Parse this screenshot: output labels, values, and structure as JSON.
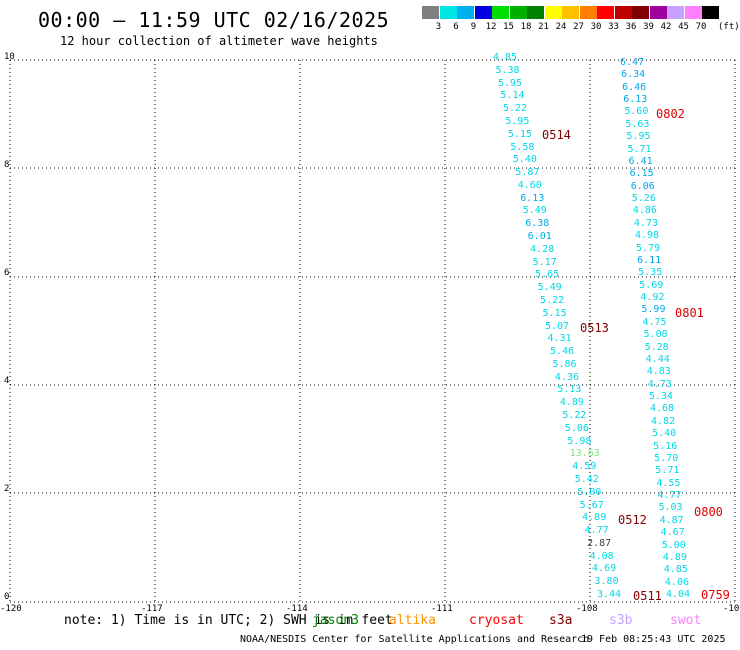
{
  "header": {
    "title": "00:00 – 11:59 UTC 02/16/2025",
    "subtitle": "12 hour collection of altimeter wave heights"
  },
  "legend": {
    "unit": "(ft)",
    "bins": [
      {
        "label": "3",
        "color": "#808080"
      },
      {
        "label": "6",
        "color": "#00e5e5"
      },
      {
        "label": "9",
        "color": "#00b0f0"
      },
      {
        "label": "12",
        "color": "#0000e0"
      },
      {
        "label": "15",
        "color": "#00e000"
      },
      {
        "label": "18",
        "color": "#00b000"
      },
      {
        "label": "21",
        "color": "#008000"
      },
      {
        "label": "24",
        "color": "#ffff00"
      },
      {
        "label": "27",
        "color": "#ffc000"
      },
      {
        "label": "30",
        "color": "#ff8000"
      },
      {
        "label": "33",
        "color": "#ff0000"
      },
      {
        "label": "36",
        "color": "#c00000"
      },
      {
        "label": "39",
        "color": "#800000"
      },
      {
        "label": "42",
        "color": "#a000a0"
      },
      {
        "label": "45",
        "color": "#c8a0ff"
      },
      {
        "label": "70",
        "color": "#ff80ff"
      },
      {
        "label": "",
        "color": "#000000"
      }
    ]
  },
  "axes": {
    "x_ticks": [
      "-120",
      "-117",
      "-114",
      "-111",
      "-108",
      "-10"
    ],
    "y_ticks": [
      "0",
      "2",
      "4",
      "6",
      "8",
      "10"
    ]
  },
  "track_left": {
    "values": [
      "4.85",
      "5.38",
      "5.95",
      "5.14",
      "5.22",
      "5.95",
      "5.15",
      "5.58",
      "5.40",
      "5.87",
      "4.60",
      "6.13",
      "5.49",
      "6.38",
      "6.01",
      "4.28",
      "5.17",
      "5.65",
      "5.49",
      "5.22",
      "5.15",
      "5.07",
      "4.31",
      "5.46",
      "5.86",
      "4.36",
      "5.13",
      "4.89",
      "5.22",
      "5.06",
      "5.98",
      "13.63",
      "4.59",
      "5.42",
      "5.00",
      "5.67",
      "4.89",
      "4.77",
      "2.87",
      "4.08",
      "4.69",
      "3.80",
      "3.44"
    ],
    "colors": [
      "c",
      "c",
      "c",
      "c",
      "c",
      "c",
      "c",
      "c",
      "c",
      "c",
      "c",
      "b",
      "c",
      "b",
      "b",
      "c",
      "c",
      "c",
      "c",
      "c",
      "c",
      "c",
      "c",
      "c",
      "c",
      "c",
      "c",
      "c",
      "c",
      "c",
      "c",
      "g",
      "c",
      "c",
      "c",
      "c",
      "c",
      "c",
      "k",
      "c",
      "c",
      "c",
      "c"
    ]
  },
  "track_right": {
    "values": [
      "6.47",
      "6.34",
      "6.46",
      "6.13",
      "5.60",
      "5.63",
      "5.95",
      "5.71",
      "6.41",
      "6.15",
      "6.06",
      "5.26",
      "4.86",
      "4.73",
      "4.98",
      "5.79",
      "6.11",
      "5.35",
      "5.69",
      "4.92",
      "5.99",
      "4.75",
      "5.08",
      "5.28",
      "4.44",
      "4.83",
      "4.73",
      "5.34",
      "4.68",
      "4.82",
      "5.40",
      "5.16",
      "5.70",
      "5.71",
      "4.55",
      "4.77",
      "5.03",
      "4.87",
      "4.67",
      "5.00",
      "4.89",
      "4.85",
      "4.06",
      "4.04"
    ],
    "colors": [
      "b",
      "b",
      "b",
      "b",
      "c",
      "c",
      "c",
      "c",
      "b",
      "b",
      "b",
      "c",
      "c",
      "c",
      "c",
      "c",
      "b",
      "c",
      "c",
      "c",
      "b",
      "c",
      "c",
      "c",
      "c",
      "c",
      "c",
      "c",
      "c",
      "c",
      "c",
      "c",
      "c",
      "c",
      "c",
      "c",
      "c",
      "c",
      "c",
      "c",
      "c",
      "c",
      "c",
      "c"
    ]
  },
  "orbits": [
    {
      "label": "0514",
      "color": "#800000"
    },
    {
      "label": "0513",
      "color": "#800000"
    },
    {
      "label": "0512",
      "color": "#800000"
    },
    {
      "label": "0511",
      "color": "#800000"
    },
    {
      "label": "0802",
      "color": "#e00000"
    },
    {
      "label": "0801",
      "color": "#e00000"
    },
    {
      "label": "0800",
      "color": "#e00000"
    },
    {
      "label": "0759",
      "color": "#e00000"
    }
  ],
  "note": "note: 1) Time is in UTC; 2) SWH is in feet",
  "missions": [
    {
      "label": "jason3",
      "color": "#008000"
    },
    {
      "label": "altika",
      "color": "#ff9000"
    },
    {
      "label": "cryosat",
      "color": "#ff0000"
    },
    {
      "label": "s3a",
      "color": "#800000"
    },
    {
      "label": "s3b",
      "color": "#c8a0ff"
    },
    {
      "label": "swot",
      "color": "#ff80ff"
    }
  ],
  "footer": {
    "credit": "NOAA/NESDIS Center for Satellite Applications and Research",
    "timestamp": "19 Feb 08:25:43 UTC 2025"
  }
}
